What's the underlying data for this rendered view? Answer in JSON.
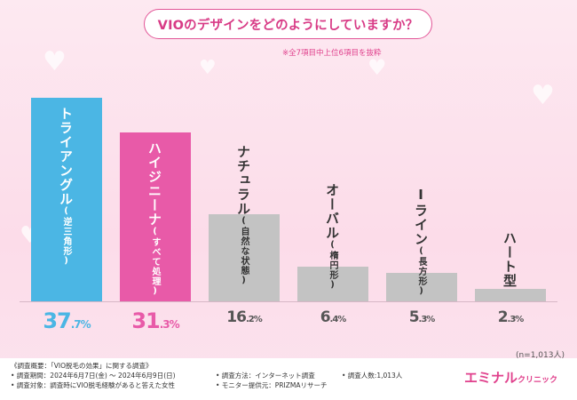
{
  "title": "VIOのデザインをどのようにしていますか？",
  "note": "※全7項目中上位6項目を抜粋",
  "n_label": "(n=1,013人)",
  "colors": {
    "highlight1": "#4bb6e4",
    "highlight2": "#e85aa8",
    "neutral": "#c3c3c3",
    "val_neutral": "#555555"
  },
  "chart_data": {
    "type": "bar",
    "title": "VIOのデザインをどのようにしていますか？",
    "categories": [
      "トライアングル（逆三角形）",
      "ハイジニーナ（すべて処理）",
      "ナチュラル（自然な状態）",
      "オーバル（楕円形）",
      "Iライン（長方形）",
      "ハート型"
    ],
    "values": [
      37.7,
      31.3,
      16.2,
      6.4,
      5.3,
      2.3
    ],
    "unit": "%",
    "ylim": [
      0,
      40
    ],
    "bars": [
      {
        "main": "トライアングル",
        "sub": "(逆三角形)",
        "value_int": "37",
        "value_dec": ".7%"
      },
      {
        "main": "ハイジニーナ",
        "sub": "(すべて処理)",
        "value_int": "31",
        "value_dec": ".3%"
      },
      {
        "main": "ナチュラル",
        "sub": "(自然な状態)",
        "value_int": "16",
        "value_dec": ".2%"
      },
      {
        "main": "オーバル",
        "sub": "(楕円形)",
        "value_int": "6",
        "value_dec": ".4%"
      },
      {
        "main": "Iライン",
        "sub": "(長方形)",
        "value_int": "5",
        "value_dec": ".3%"
      },
      {
        "main": "ハート型",
        "sub": "",
        "value_int": "2",
        "value_dec": ".3%"
      }
    ]
  },
  "footer": {
    "line1": "《調査概要：「VIO脱毛の効果」に関する調査》",
    "line2": "• 調査期間：2024年6月7日(金) ～ 2024年6月9日(日)",
    "line3": "• 調査対象：調査時にVIO脱毛経験があると答えた女性",
    "method": "• 調査方法：インターネット調査",
    "provider": "• モニター提供元：PRIZMAリサーチ",
    "count": "• 調査人数:1,013人",
    "brand_main": "エミナル",
    "brand_sub": "クリニック"
  }
}
